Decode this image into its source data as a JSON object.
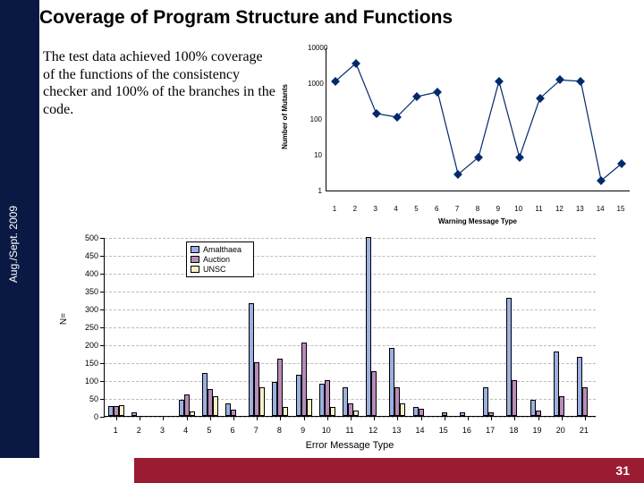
{
  "page": {
    "title": "Coverage of Program Structure and Functions",
    "sidebar_date": "Aug./Sept. 2009",
    "body_text": "The test data achieved 100% coverage of the functions of the consistency checker and 100% of the branches in the code.",
    "page_number": "31"
  },
  "colors": {
    "sidebar_bg": "#0a1844",
    "footer_bg": "#9a1b32",
    "chart1_marker": "#002a6b",
    "series_amalthaea": "#9bb0e0",
    "series_auction": "#b88bb8",
    "series_unsc": "#f5f0c8"
  },
  "chart1": {
    "type": "line",
    "title": "",
    "ylabel": "Number of Mutants",
    "xlabel": "Warning Message Type",
    "yscale": "log",
    "ymin": 1,
    "ymax": 10000,
    "yticks": [
      1,
      10,
      100,
      1000,
      10000
    ],
    "ytick_labels": [
      "1",
      "10",
      "100",
      "1000",
      "10000"
    ],
    "xmin": 1,
    "xmax": 15,
    "xticks": [
      1,
      2,
      3,
      4,
      5,
      6,
      7,
      8,
      9,
      10,
      11,
      12,
      13,
      14,
      15
    ],
    "values": [
      1200,
      3800,
      150,
      120,
      450,
      600,
      3,
      9,
      1200,
      9,
      400,
      1300,
      1200,
      2,
      6
    ],
    "marker": "diamond",
    "marker_color": "#002a6b",
    "line_color": "#002a6b",
    "line_width": 1.2,
    "background_color": "#ffffff"
  },
  "chart2": {
    "type": "grouped_bar",
    "ylabel": "N=",
    "xlabel": "Error Message Type",
    "ymin": 0,
    "ymax": 500,
    "ytick_step": 50,
    "yticks": [
      0,
      50,
      100,
      150,
      200,
      250,
      300,
      350,
      400,
      450,
      500
    ],
    "categories": [
      1,
      2,
      3,
      4,
      5,
      6,
      7,
      8,
      9,
      10,
      11,
      12,
      13,
      14,
      15,
      16,
      17,
      18,
      19,
      20,
      21
    ],
    "grid_color": "#bbbbbb",
    "bar_border_color": "#000000",
    "background_color": "#ffffff",
    "series": [
      {
        "name": "Amalthaea",
        "color": "#9bb0e0",
        "values": [
          28,
          10,
          0,
          45,
          120,
          35,
          315,
          95,
          115,
          90,
          80,
          500,
          190,
          25,
          0,
          10,
          80,
          330,
          45,
          180,
          165
        ]
      },
      {
        "name": "Auction",
        "color": "#b88bb8",
        "values": [
          28,
          0,
          0,
          60,
          75,
          18,
          150,
          160,
          205,
          100,
          35,
          125,
          80,
          20,
          10,
          0,
          10,
          100,
          15,
          55,
          80
        ]
      },
      {
        "name": "UNSC",
        "color": "#f5f0c8",
        "values": [
          30,
          0,
          0,
          12,
          55,
          0,
          80,
          25,
          48,
          25,
          15,
          0,
          35,
          0,
          0,
          0,
          0,
          0,
          0,
          0,
          0
        ]
      }
    ]
  }
}
